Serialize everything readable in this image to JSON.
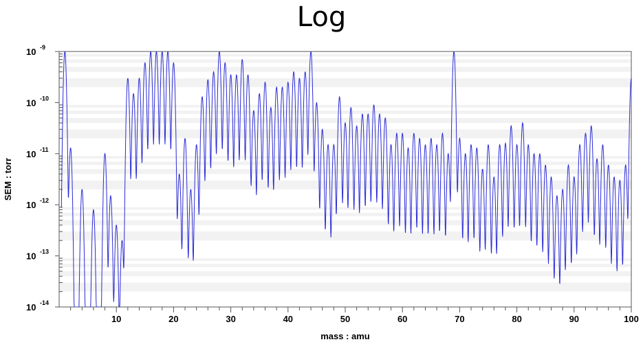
{
  "chart_data": {
    "type": "line",
    "title": "Log",
    "xlabel": "mass : amu",
    "ylabel": "SEM : torr",
    "xlim": [
      0,
      100
    ],
    "ylim": [
      1e-14,
      1e-09
    ],
    "yscale": "log",
    "grid": "horizontal minor bands",
    "x_ticks": [
      "10",
      "20",
      "30",
      "40",
      "50",
      "60",
      "70",
      "80",
      "90",
      "100"
    ],
    "y_ticks": [
      {
        "base": "10",
        "exp": "-9"
      },
      {
        "base": "10",
        "exp": "-10"
      },
      {
        "base": "10",
        "exp": "-11"
      },
      {
        "base": "10",
        "exp": "-12"
      },
      {
        "base": "10",
        "exp": "-13"
      },
      {
        "base": "10",
        "exp": "-14"
      }
    ],
    "series": [
      {
        "color": "#2a2ad6",
        "peaks": [
          {
            "x": 1,
            "y": 1e-09
          },
          {
            "x": 2,
            "y": 1.3e-11
          },
          {
            "x": 4,
            "y": 2e-12
          },
          {
            "x": 6,
            "y": 8e-13
          },
          {
            "x": 8,
            "y": 1e-11
          },
          {
            "x": 9,
            "y": 1.5e-12
          },
          {
            "x": 10,
            "y": 4e-13
          },
          {
            "x": 11,
            "y": 2e-13
          },
          {
            "x": 12,
            "y": 3e-10
          },
          {
            "x": 13,
            "y": 1.5e-10
          },
          {
            "x": 14,
            "y": 3e-10
          },
          {
            "x": 15,
            "y": 6e-10
          },
          {
            "x": 16,
            "y": 1e-09
          },
          {
            "x": 17,
            "y": 1e-09
          },
          {
            "x": 18,
            "y": 1e-09
          },
          {
            "x": 19,
            "y": 1e-09
          },
          {
            "x": 20,
            "y": 6e-10
          },
          {
            "x": 21,
            "y": 4e-12
          },
          {
            "x": 22,
            "y": 2e-11
          },
          {
            "x": 23,
            "y": 2e-12
          },
          {
            "x": 24,
            "y": 1.5e-11
          },
          {
            "x": 25,
            "y": 1.3e-10
          },
          {
            "x": 26,
            "y": 2.8e-10
          },
          {
            "x": 27,
            "y": 4e-10
          },
          {
            "x": 28,
            "y": 1e-09
          },
          {
            "x": 29,
            "y": 6e-10
          },
          {
            "x": 30,
            "y": 3.5e-10
          },
          {
            "x": 31,
            "y": 3.5e-10
          },
          {
            "x": 32,
            "y": 7e-10
          },
          {
            "x": 33,
            "y": 3.5e-10
          },
          {
            "x": 34,
            "y": 7e-11
          },
          {
            "x": 35,
            "y": 1.5e-10
          },
          {
            "x": 36,
            "y": 2.5e-10
          },
          {
            "x": 37,
            "y": 8e-11
          },
          {
            "x": 38,
            "y": 2e-10
          },
          {
            "x": 39,
            "y": 2e-10
          },
          {
            "x": 40,
            "y": 2.5e-10
          },
          {
            "x": 41,
            "y": 4e-10
          },
          {
            "x": 42,
            "y": 3e-10
          },
          {
            "x": 43,
            "y": 4e-10
          },
          {
            "x": 44,
            "y": 1e-09
          },
          {
            "x": 45,
            "y": 1e-10
          },
          {
            "x": 46,
            "y": 3e-11
          },
          {
            "x": 47,
            "y": 1.5e-11
          },
          {
            "x": 48,
            "y": 1.5e-11
          },
          {
            "x": 49,
            "y": 1.3e-10
          },
          {
            "x": 50,
            "y": 4e-11
          },
          {
            "x": 51,
            "y": 8e-11
          },
          {
            "x": 52,
            "y": 3.5e-11
          },
          {
            "x": 53,
            "y": 6e-11
          },
          {
            "x": 54,
            "y": 6e-11
          },
          {
            "x": 55,
            "y": 9e-11
          },
          {
            "x": 56,
            "y": 6e-11
          },
          {
            "x": 57,
            "y": 5e-11
          },
          {
            "x": 58,
            "y": 1.5e-11
          },
          {
            "x": 59,
            "y": 2.5e-11
          },
          {
            "x": 60,
            "y": 2.5e-11
          },
          {
            "x": 61,
            "y": 1.3e-11
          },
          {
            "x": 62,
            "y": 2.5e-11
          },
          {
            "x": 63,
            "y": 2e-11
          },
          {
            "x": 64,
            "y": 1.5e-11
          },
          {
            "x": 65,
            "y": 2e-11
          },
          {
            "x": 66,
            "y": 1.5e-11
          },
          {
            "x": 67,
            "y": 2.5e-11
          },
          {
            "x": 68,
            "y": 1e-11
          },
          {
            "x": 69,
            "y": 1e-09
          },
          {
            "x": 70,
            "y": 2e-11
          },
          {
            "x": 71,
            "y": 1e-11
          },
          {
            "x": 72,
            "y": 1.5e-11
          },
          {
            "x": 73,
            "y": 1.3e-11
          },
          {
            "x": 74,
            "y": 5e-12
          },
          {
            "x": 75,
            "y": 1.5e-11
          },
          {
            "x": 76,
            "y": 3.5e-12
          },
          {
            "x": 77,
            "y": 1.5e-11
          },
          {
            "x": 78,
            "y": 1.6e-11
          },
          {
            "x": 79,
            "y": 3.5e-11
          },
          {
            "x": 80,
            "y": 1.5e-11
          },
          {
            "x": 81,
            "y": 4e-11
          },
          {
            "x": 82,
            "y": 1.5e-11
          },
          {
            "x": 83,
            "y": 1e-11
          },
          {
            "x": 84,
            "y": 1e-11
          },
          {
            "x": 85,
            "y": 6e-12
          },
          {
            "x": 86,
            "y": 3.5e-12
          },
          {
            "x": 87,
            "y": 1.5e-12
          },
          {
            "x": 88,
            "y": 2e-12
          },
          {
            "x": 89,
            "y": 6e-12
          },
          {
            "x": 90,
            "y": 3.5e-12
          },
          {
            "x": 91,
            "y": 1.5e-11
          },
          {
            "x": 92,
            "y": 2.5e-11
          },
          {
            "x": 93,
            "y": 3.5e-11
          },
          {
            "x": 94,
            "y": 8e-12
          },
          {
            "x": 95,
            "y": 1.5e-11
          },
          {
            "x": 96,
            "y": 6e-12
          },
          {
            "x": 97,
            "y": 3.5e-12
          },
          {
            "x": 98,
            "y": 3e-12
          },
          {
            "x": 99,
            "y": 6e-12
          },
          {
            "x": 100,
            "y": 3e-10
          }
        ]
      }
    ]
  }
}
